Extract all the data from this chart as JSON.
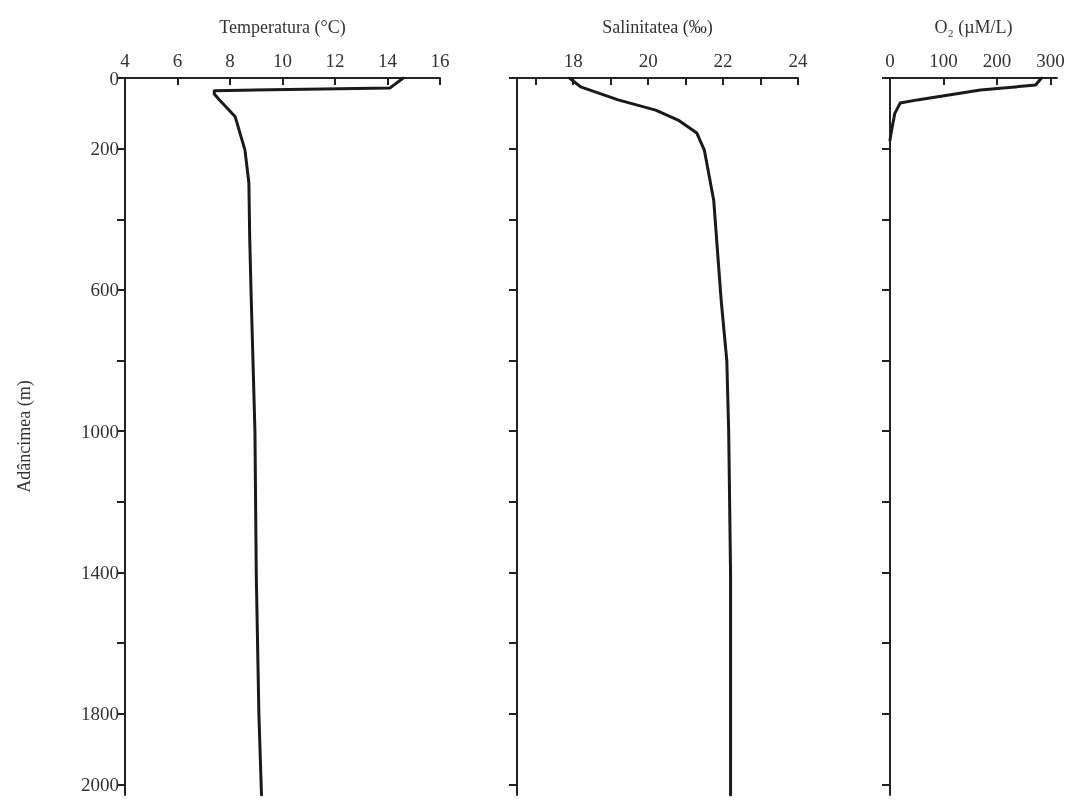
{
  "chart_data": [
    {
      "type": "line",
      "xlabel": "Temperatura (°C)",
      "ylabel": "Adâncimea (m)",
      "marker": "none",
      "line_style": "solid",
      "color": "#1a1a1a",
      "x": [
        14.6,
        14.1,
        7.4,
        7.4,
        7.6,
        8.2,
        8.57,
        8.72,
        8.75,
        8.8,
        8.95,
        9.0,
        9.1,
        9.2
      ],
      "values": [
        0,
        28,
        36,
        45,
        62,
        110,
        204,
        298,
        450,
        600,
        1000,
        1400,
        1800,
        2030
      ],
      "xlim": [
        4,
        16
      ],
      "xticks": [
        4,
        6,
        8,
        10,
        12,
        14,
        16
      ],
      "ylim": [
        2030,
        0
      ],
      "yticks": [
        0,
        200,
        {
          "value": 400,
          "label": null
        },
        600,
        {
          "value": 800,
          "label": null
        },
        1000,
        {
          "value": 1200,
          "label": null
        },
        1400,
        {
          "value": 1600,
          "label": null
        },
        1800,
        2000
      ]
    },
    {
      "type": "line",
      "xlabel": "Salinitatea (‰)",
      "marker": "none",
      "line_style": "solid",
      "color": "#1a1a1a",
      "tick_labels": "x",
      "x": [
        17.9,
        18.2,
        19.2,
        20.2,
        20.8,
        21.3,
        21.5,
        21.75,
        21.95,
        22.1,
        22.15,
        22.2,
        22.2
      ],
      "values": [
        0,
        25,
        62,
        91,
        119,
        156,
        204,
        346,
        630,
        800,
        1000,
        1400,
        2030
      ],
      "xlim": [
        16.5,
        24
      ],
      "xticks": [
        {
          "value": 17,
          "label": null
        },
        18,
        {
          "value": 19,
          "label": null
        },
        20,
        {
          "value": 21,
          "label": null
        },
        22,
        {
          "value": 23,
          "label": null
        },
        24
      ],
      "ylim": [
        2030,
        0
      ],
      "yticks": [
        0,
        200,
        {
          "value": 400,
          "label": null
        },
        600,
        {
          "value": 800,
          "label": null
        },
        1000,
        {
          "value": 1200,
          "label": null
        },
        1400,
        {
          "value": 1600,
          "label": null
        },
        1800,
        2000
      ]
    },
    {
      "type": "line",
      "xlabel": "O₂ (µM/L)",
      "marker": "none",
      "line_style": "solid",
      "color": "#1a1a1a",
      "tick_labels": "x",
      "x": [
        283,
        272,
        169,
        51,
        19,
        9,
        2,
        0
      ],
      "values": [
        0,
        20,
        34,
        62,
        71,
        100,
        156,
        176
      ],
      "xlim": [
        0,
        312
      ],
      "xticks": [
        0,
        100,
        200,
        300
      ],
      "ylim": [
        2030,
        0
      ],
      "yticks": [
        0,
        200,
        {
          "value": 400,
          "label": null
        },
        600,
        {
          "value": 800,
          "label": null
        },
        1000,
        {
          "value": 1200,
          "label": null
        },
        1400,
        {
          "value": 1600,
          "label": null
        },
        1800,
        2000
      ]
    }
  ]
}
